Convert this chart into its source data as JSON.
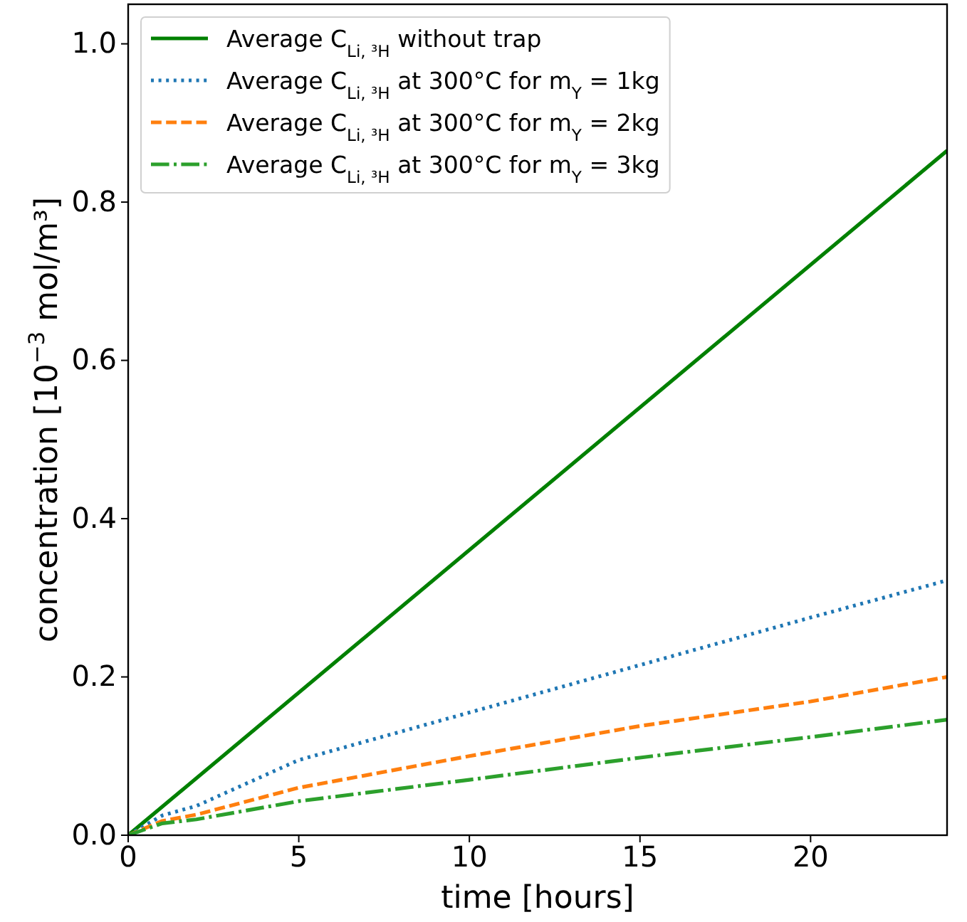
{
  "chart_data": {
    "type": "line",
    "xlabel": "time [hours]",
    "ylabel": "concentration [10$^{−3}$ mol/m³]",
    "x": [
      0,
      1,
      2,
      5,
      10,
      15,
      20,
      24
    ],
    "series": [
      {
        "name": "Average C$_{Li, ³H}$ without trap",
        "color": "#008000",
        "line_style": "solid",
        "x": [
          0,
          24
        ],
        "values": [
          0,
          0.865
        ]
      },
      {
        "name": "Average C$_{Li, ³H}$ at 300°C for m$_{Y}$ = 1kg",
        "color": "#1f77b4",
        "line_style": "dotted",
        "values": [
          0,
          0.025,
          0.037,
          0.095,
          0.155,
          0.215,
          0.275,
          0.322
        ]
      },
      {
        "name": "Average C$_{Li, ³H}$ at 300°C for m$_{Y}$ = 2kg",
        "color": "#ff7f0e",
        "line_style": "dashed",
        "values": [
          0,
          0.018,
          0.026,
          0.06,
          0.1,
          0.138,
          0.169,
          0.2
        ]
      },
      {
        "name": "Average C$_{Li, ³H}$ at 300°C for m$_{Y}$ = 3kg",
        "color": "#2ca02c",
        "line_style": "dashdot",
        "values": [
          0,
          0.015,
          0.02,
          0.043,
          0.07,
          0.098,
          0.124,
          0.146
        ]
      }
    ],
    "xlim": [
      0,
      24
    ],
    "xticks": [
      0,
      5,
      10,
      15,
      20
    ],
    "ylim": [
      0,
      1.05
    ],
    "yticks": [
      {
        "value": 0,
        "label": "0.0"
      },
      {
        "value": 0.2,
        "label": "0.2"
      },
      {
        "value": 0.4,
        "label": "0.4"
      },
      {
        "value": 0.6,
        "label": "0.6"
      },
      {
        "value": 0.8,
        "label": "0.8"
      },
      {
        "value": 1.0,
        "label": "1.0"
      }
    ],
    "grid": false,
    "legend": "top left",
    "marker": "none"
  }
}
